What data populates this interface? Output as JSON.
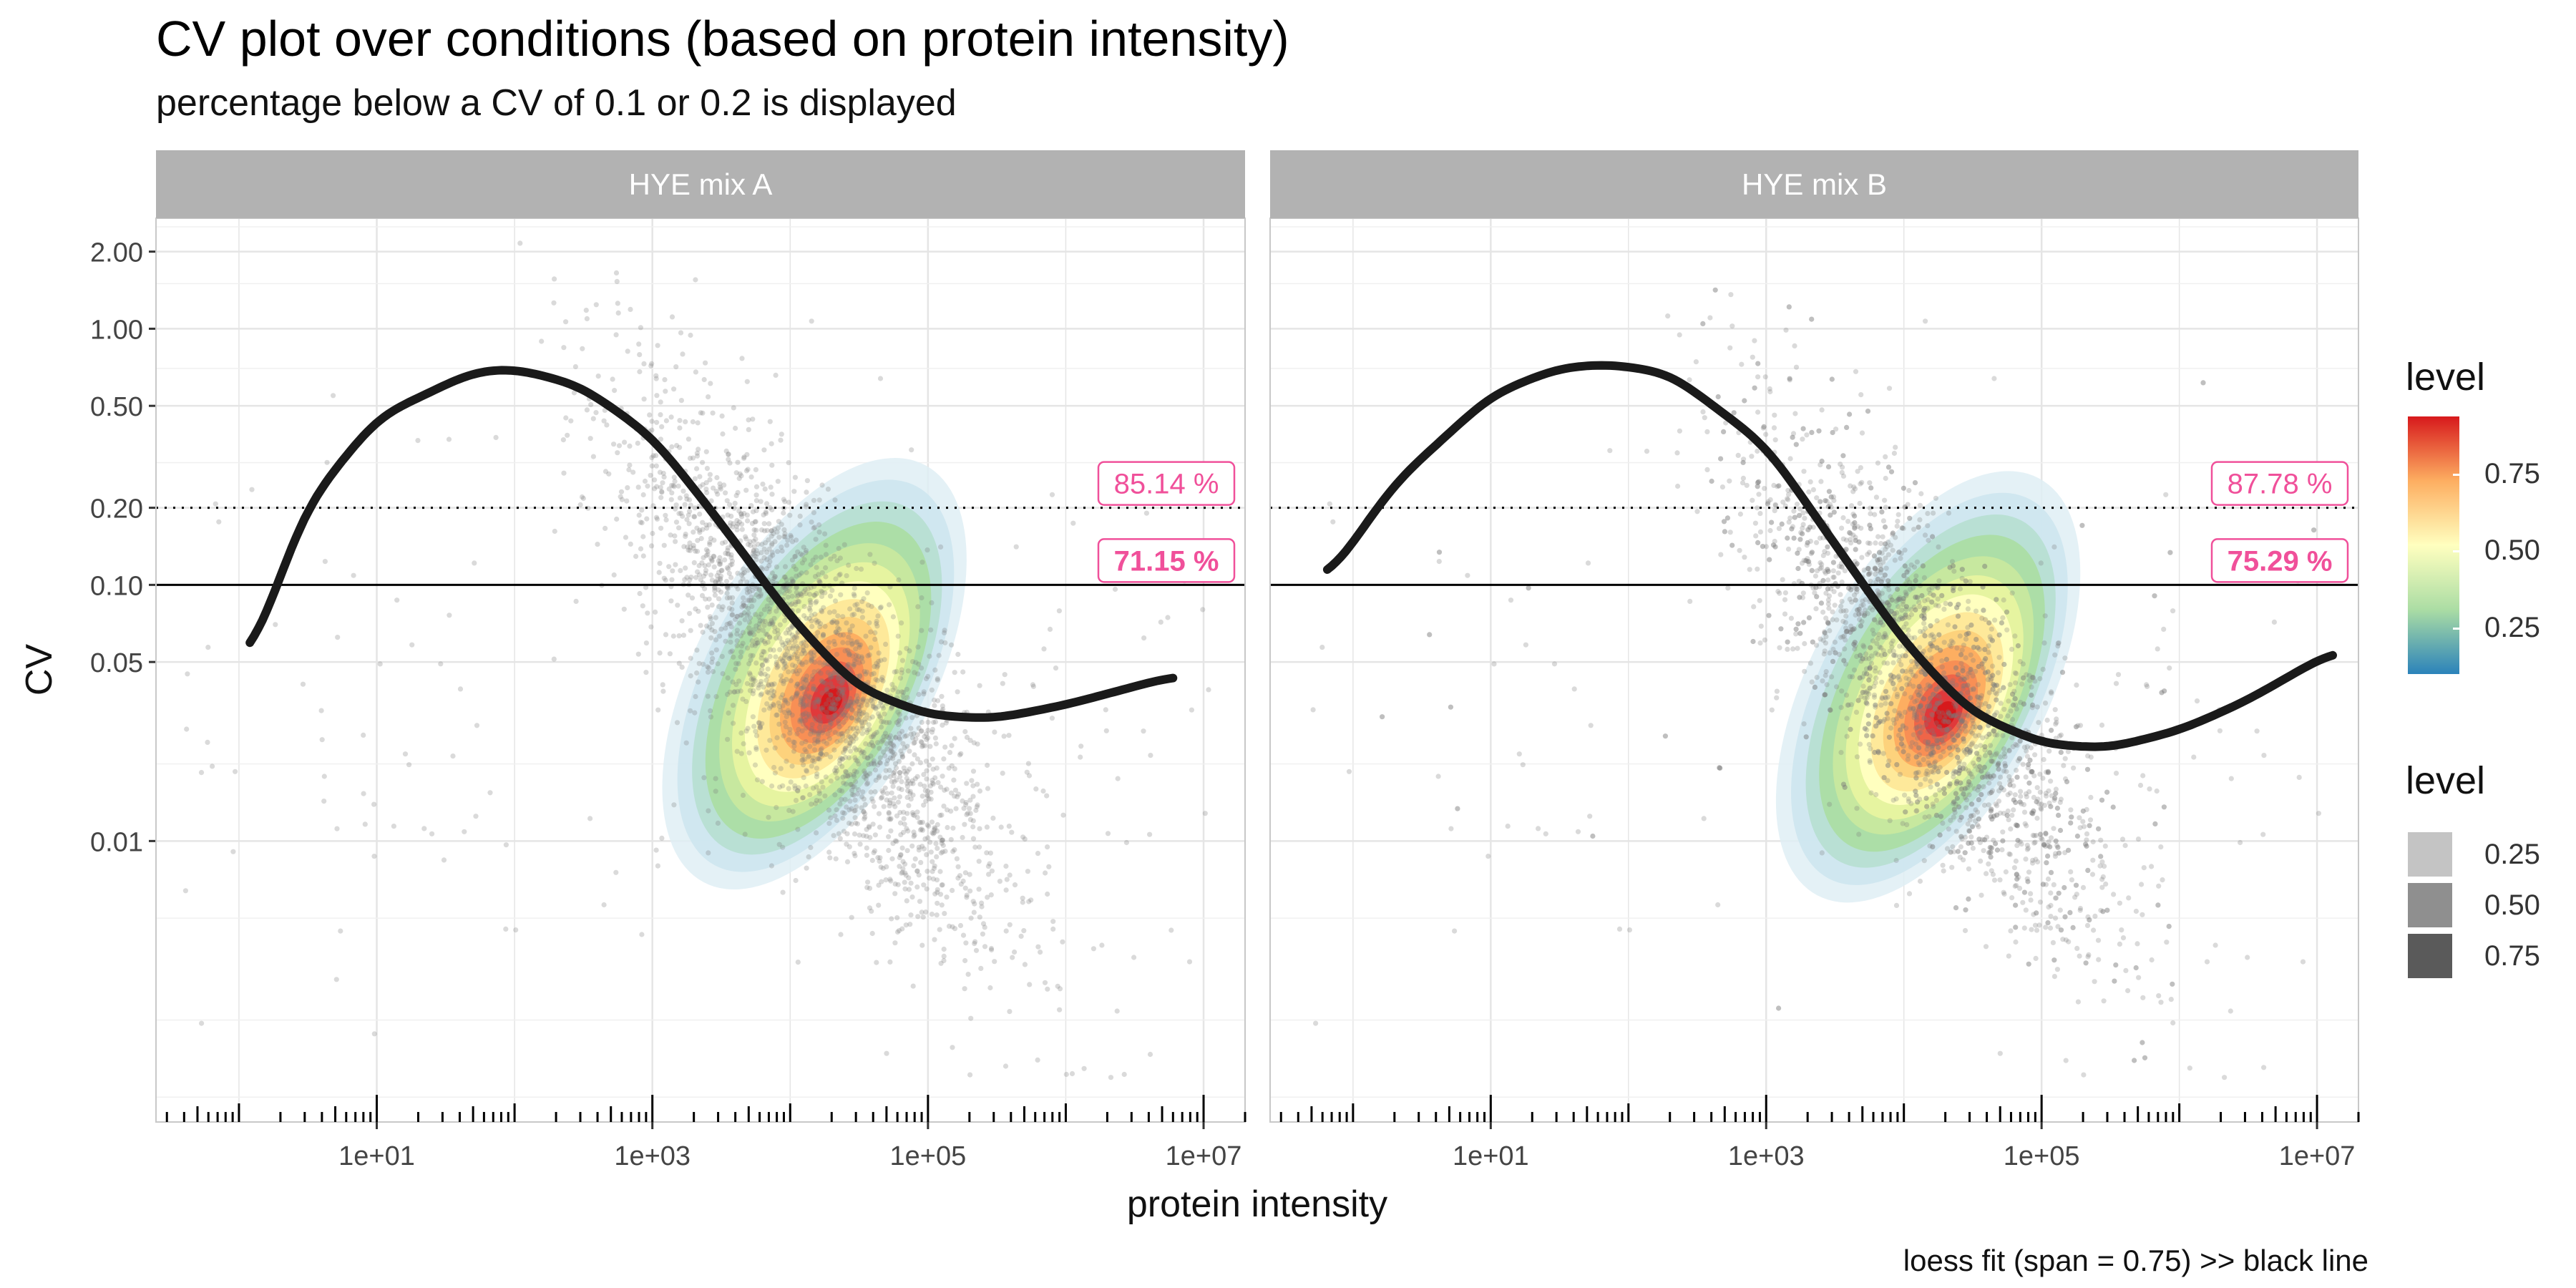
{
  "title": "CV plot over conditions (based on protein intensity)",
  "subtitle": "percentage below a CV of 0.1 or 0.2 is displayed",
  "caption": "loess fit (span = 0.75) >> black line",
  "colors": {
    "strip_bg": "#b2b2b2",
    "grid": "#e5e5e5",
    "percent_label": "#f0509a",
    "fit_line": "#1a1a1a",
    "points": "#7a7a7a",
    "spectral": [
      "#2b83ba",
      "#abdda4",
      "#ffffbf",
      "#fdae61",
      "#d7191c"
    ]
  },
  "legend_fill": {
    "title": "level",
    "labels": [
      "0.75",
      "0.50",
      "0.25"
    ]
  },
  "legend_alpha": {
    "title": "level",
    "items": [
      {
        "label": "0.25",
        "shade": "#c4c4c4"
      },
      {
        "label": "0.50",
        "shade": "#8f8f8f"
      },
      {
        "label": "0.75",
        "shade": "#5a5a5a"
      }
    ]
  },
  "chart_data": {
    "type": "scatter",
    "title": "CV plot over conditions (based on protein intensity)",
    "subtitle": "percentage below a CV of 0.1 or 0.2 is displayed",
    "xlabel": "protein intensity",
    "ylabel": "CV",
    "x_scale": "log10",
    "y_scale": "log10",
    "xlim": [
      0.25,
      20000000
    ],
    "ylim": [
      0.0008,
      2.7
    ],
    "x_ticks": [
      10,
      1000,
      100000,
      10000000
    ],
    "x_tick_labels": [
      "1e+01",
      "1e+03",
      "1e+05",
      "1e+07"
    ],
    "y_ticks": [
      0.01,
      0.05,
      0.1,
      0.2,
      0.5,
      1,
      2
    ],
    "y_tick_labels": [
      "0.01",
      "0.05",
      "0.10",
      "0.20",
      "0.50",
      "1.00",
      "2.00"
    ],
    "reference_lines": [
      {
        "y": 0.2,
        "style": "dotted"
      },
      {
        "y": 0.1,
        "style": "solid"
      }
    ],
    "caption": "loess fit (span = 0.75) >> black line",
    "panels": [
      {
        "name": "HYE mix A",
        "pct_below_0_2": "85.14 %",
        "pct_below_0_1": "71.15 %",
        "density_peak": {
          "x": 15000,
          "cv": 0.045
        },
        "loess_fit": {
          "x": [
            1.2,
            3,
            10,
            50,
            100,
            300,
            1000,
            3000,
            10000,
            30000,
            100000,
            300000,
            1000000,
            6000000
          ],
          "cv": [
            0.05,
            0.2,
            0.45,
            0.68,
            0.7,
            0.6,
            0.38,
            0.18,
            0.075,
            0.04,
            0.031,
            0.03,
            0.034,
            0.044
          ]
        }
      },
      {
        "name": "HYE mix B",
        "pct_below_0_2": "87.78 %",
        "pct_below_0_1": "75.29 %",
        "density_peak": {
          "x": 15000,
          "cv": 0.04
        },
        "loess_fit": {
          "x": [
            0.65,
            2,
            10,
            30,
            70,
            200,
            1000,
            3000,
            10000,
            30000,
            100000,
            300000,
            1000000,
            3000000,
            13000000
          ],
          "cv": [
            0.105,
            0.25,
            0.55,
            0.7,
            0.73,
            0.67,
            0.35,
            0.15,
            0.06,
            0.032,
            0.024,
            0.023,
            0.027,
            0.035,
            0.055
          ]
        }
      }
    ]
  }
}
